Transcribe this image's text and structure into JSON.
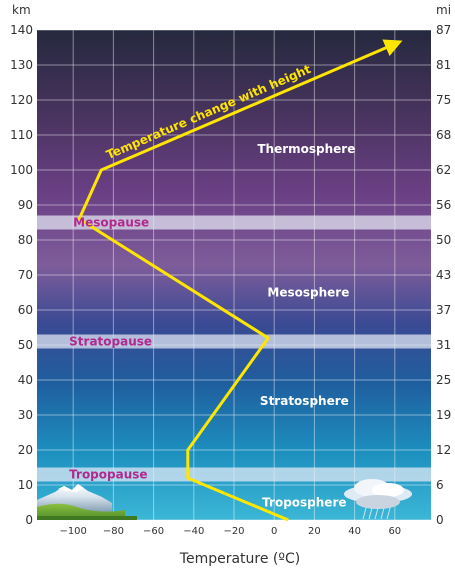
{
  "chart_data": {
    "type": "line",
    "left_axis_unit": "km",
    "right_axis_unit": "mi",
    "x_title": "Temperature (ºC)",
    "x_ticks": [
      -100,
      -80,
      -60,
      -40,
      -20,
      0,
      20,
      40,
      60
    ],
    "x_tick_labels": [
      "−100",
      "−80",
      "−60",
      "−40",
      "−20",
      "0",
      "20",
      "40",
      "60"
    ],
    "xlim": [
      -118,
      78
    ],
    "ylim": [
      0,
      140
    ],
    "y_ticks_km": [
      0,
      10,
      20,
      30,
      40,
      50,
      60,
      70,
      80,
      90,
      100,
      110,
      120,
      130,
      140
    ],
    "y_ticks_km_labels": [
      "0",
      "10",
      "20",
      "30",
      "40",
      "50",
      "60",
      "70",
      "80",
      "90",
      "100",
      "110",
      "120",
      "130",
      "140"
    ],
    "y_ticks_mi": [
      0,
      6,
      12,
      19,
      25,
      31,
      37,
      43,
      50,
      56,
      62,
      68,
      75,
      81,
      87
    ],
    "y_ticks_mi_labels": [
      "0",
      "6",
      "12",
      "19",
      "25",
      "31",
      "37",
      "43",
      "50",
      "56",
      "62",
      "68",
      "75",
      "81",
      "87"
    ],
    "curve_label": "Temperature change with height",
    "curve": {
      "x": [
        7,
        -43,
        -43,
        -3,
        -97,
        -86,
        60
      ],
      "y": [
        0,
        12,
        20,
        52,
        86,
        100,
        136
      ]
    },
    "layers": [
      {
        "name": "Troposphere",
        "temp": 15,
        "height": 5
      },
      {
        "name": "Stratosphere",
        "temp": 15,
        "height": 34
      },
      {
        "name": "Mesosphere",
        "temp": 17,
        "height": 65
      },
      {
        "name": "Thermosphere",
        "temp": 16,
        "height": 106
      }
    ],
    "pauses": [
      {
        "name": "Tropopause",
        "temp": -102,
        "height": 13,
        "band": [
          11,
          15
        ]
      },
      {
        "name": "Stratopause",
        "temp": -102,
        "height": 51,
        "band": [
          49,
          53
        ]
      },
      {
        "name": "Mesopause",
        "temp": -100,
        "height": 85,
        "band": [
          83,
          87
        ]
      }
    ],
    "colors": {
      "curve": "#ffe600",
      "layer_text": "#ffffff",
      "pause_text": "#b02a8e",
      "pause_band": "#e6eaf5",
      "grid": "#ffffff"
    }
  }
}
